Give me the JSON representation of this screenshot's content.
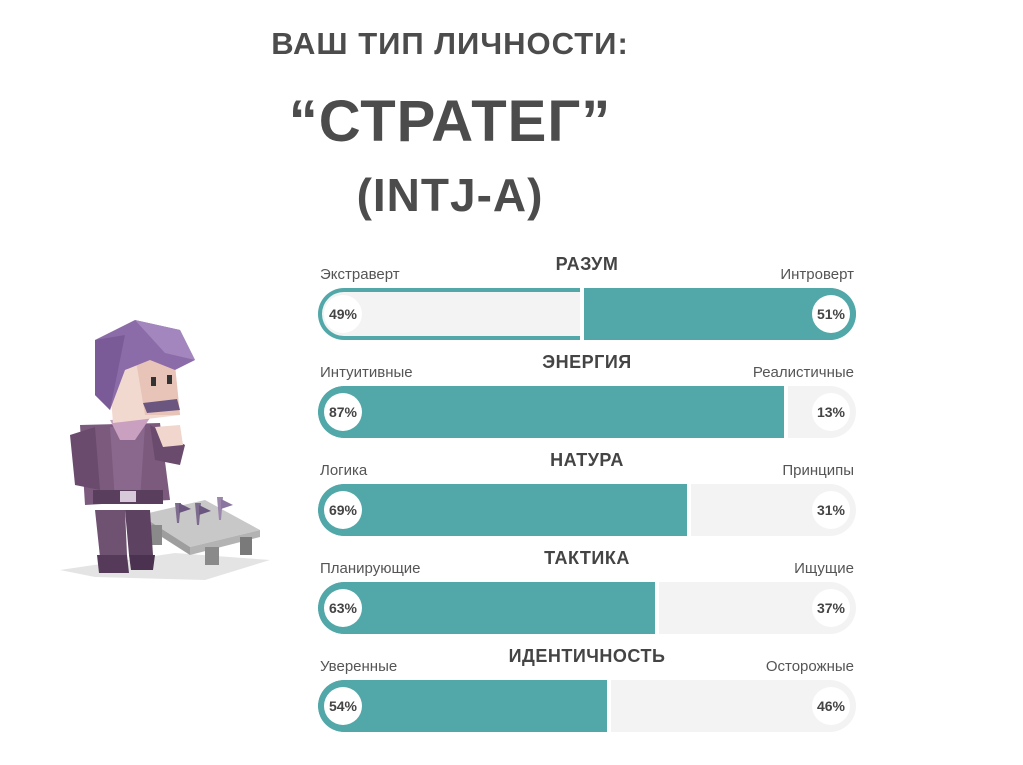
{
  "header": {
    "line1": "ВАШ ТИП ЛИЧНОСТИ:",
    "line2": "“СТРАТЕГ”",
    "line3": "(INTJ-A)"
  },
  "colors": {
    "accent": "#52a8a9",
    "track": "#f3f3f3",
    "text": "#4c4c4c"
  },
  "scales": [
    {
      "title": "РАЗУМ",
      "left_label": "Экстраверт",
      "right_label": "Интроверт",
      "left_pct": "49%",
      "right_pct": "51%",
      "winner": "right",
      "left_value": 49
    },
    {
      "title": "ЭНЕРГИЯ",
      "left_label": "Интуитивные",
      "right_label": "Реалистичные",
      "left_pct": "87%",
      "right_pct": "13%",
      "winner": "left",
      "left_value": 87
    },
    {
      "title": "НАТУРА",
      "left_label": "Логика",
      "right_label": "Принципы",
      "left_pct": "69%",
      "right_pct": "31%",
      "winner": "left",
      "left_value": 69
    },
    {
      "title": "ТАКТИКА",
      "left_label": "Планирующие",
      "right_label": "Ищущие",
      "left_pct": "63%",
      "right_pct": "37%",
      "winner": "left",
      "left_value": 63
    },
    {
      "title": "ИДЕНТИЧНОСТЬ",
      "left_label": "Уверенные",
      "right_label": "Осторожные",
      "left_pct": "54%",
      "right_pct": "46%",
      "winner": "left",
      "left_value": 54
    }
  ]
}
